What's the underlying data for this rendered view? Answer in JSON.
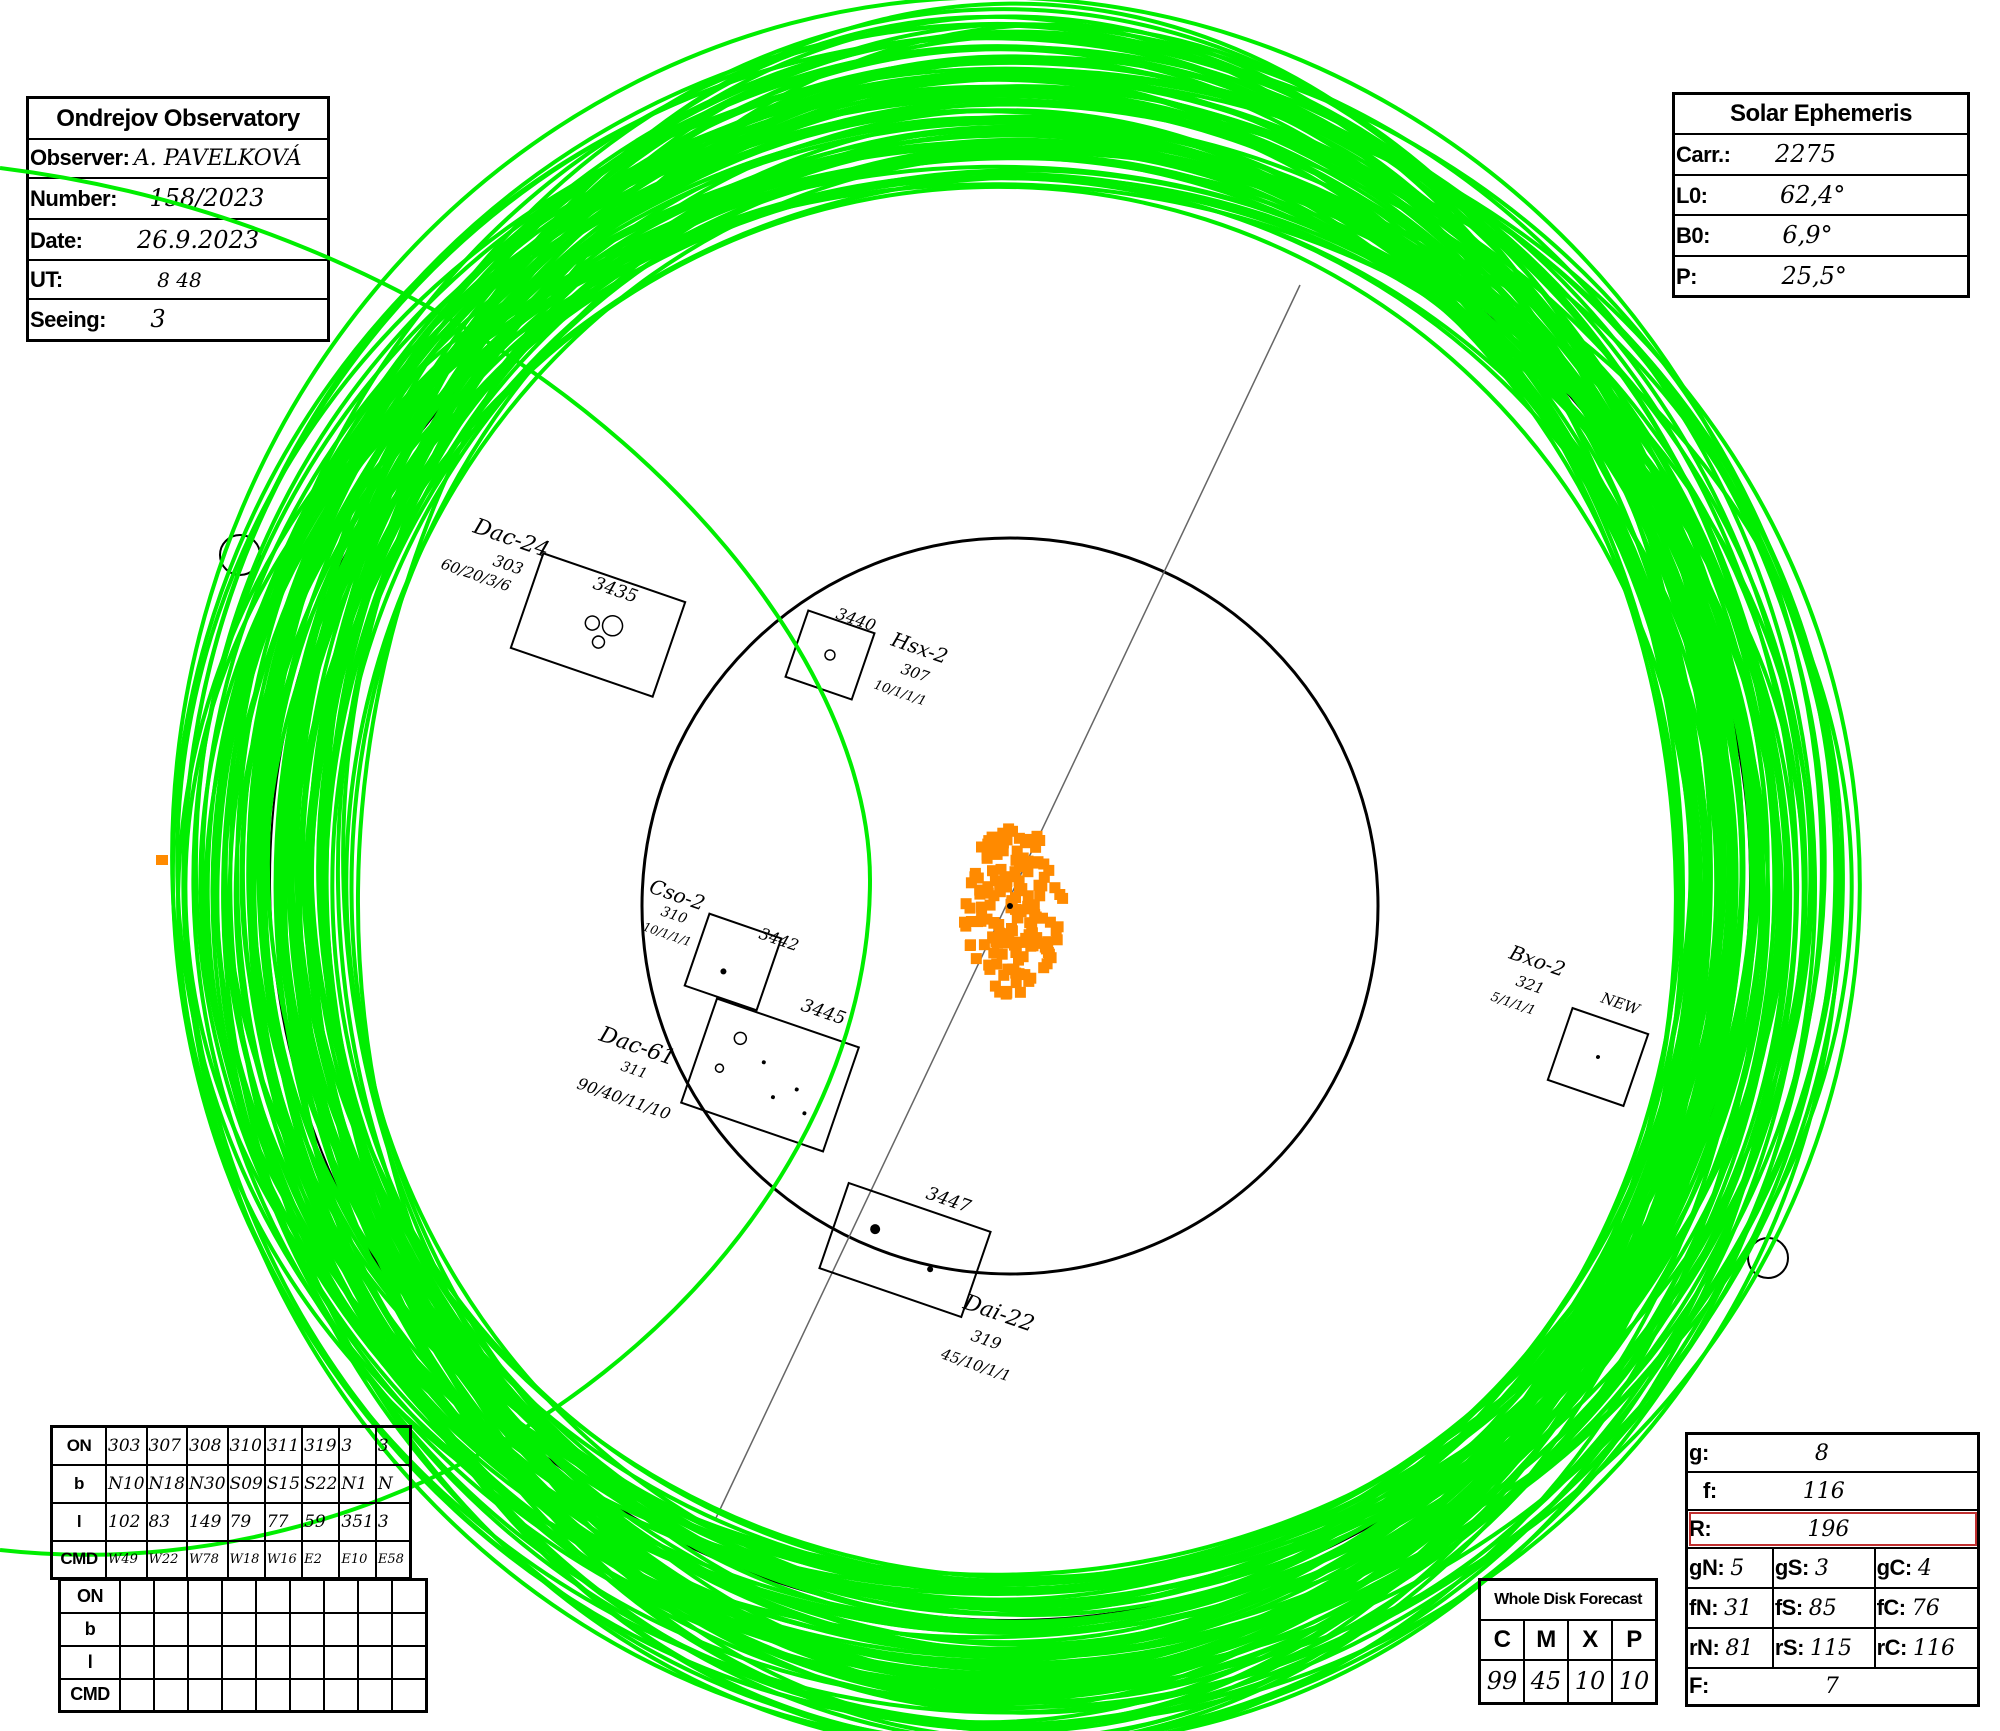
{
  "observatory": {
    "title": "Ondrejov Observatory",
    "observer_label": "Observer:",
    "observer": "A. PAVELKOVÁ",
    "number_label": "Number:",
    "number": "158/2023",
    "date_label": "Date:",
    "date": "26.9.2023",
    "ut_label": "UT:",
    "ut": "8 48",
    "seeing_label": "Seeing:",
    "seeing": "3"
  },
  "ephemeris": {
    "title": "Solar Ephemeris",
    "carr_label": "Carr.:",
    "carr": "2275",
    "l0_label": "L0:",
    "l0": "62,4°",
    "b0_label": "B0:",
    "b0": "6,9°",
    "p_label": "P:",
    "p": "25,5°"
  },
  "groups": [
    {
      "number": "3435",
      "class": "Dac-24",
      "cmd": "303",
      "detail": "60/20/3/6"
    },
    {
      "number": "3440",
      "class": "Hsx-2",
      "cmd": "307",
      "detail": "10/1/1/1"
    },
    {
      "number": "3442",
      "class": "Cso-2",
      "cmd": "310",
      "detail": "10/1/1/1"
    },
    {
      "number": "3445",
      "class": "Dac-61",
      "cmd": "311",
      "detail": "90/40/11/10"
    },
    {
      "number": "3447",
      "class": "Dai-22",
      "cmd": "319",
      "detail": "45/10/1/1"
    },
    {
      "number": "NEW",
      "class": "Bxo-2",
      "cmd": "321",
      "detail": "5/1/1/1"
    }
  ],
  "on_table": {
    "row_labels": [
      "ON",
      "b",
      "l",
      "CMD"
    ],
    "on": [
      "303",
      "307",
      "308",
      "310",
      "311",
      "319",
      "3",
      "3"
    ],
    "b": [
      "N10",
      "N18",
      "N30",
      "S09",
      "S15",
      "S22",
      "N1",
      "N"
    ],
    "l": [
      "102",
      "83",
      "149",
      "79",
      "77",
      "59",
      "351",
      "3"
    ],
    "cmd": [
      "W49",
      "W22",
      "W78",
      "W18",
      "W16",
      "E2",
      "E10",
      "E58"
    ]
  },
  "on_table_empty": {
    "row_labels": [
      "ON",
      "b",
      "l",
      "CMD"
    ]
  },
  "forecast": {
    "title": "Whole Disk Forecast",
    "headers": [
      "C",
      "M",
      "X",
      "P"
    ],
    "values": [
      "99",
      "45",
      "10",
      "10"
    ]
  },
  "summary": {
    "g_label": "g:",
    "g": "8",
    "f_label": "f:",
    "f": "116",
    "r_label": "R:",
    "r": "196",
    "gn_label": "gN:",
    "gn": "5",
    "gs_label": "gS:",
    "gs": "3",
    "gc_label": "gC:",
    "gc": "4",
    "fn_label": "fN:",
    "fn": "31",
    "fs_label": "fS:",
    "fs": "85",
    "fc_label": "fC:",
    "fc": "76",
    "rn_label": "rN:",
    "rn": "81",
    "rs_label": "rS:",
    "rs": "115",
    "rc_label": "rC:",
    "rc": "116",
    "ff_label": "F:",
    "ff": "7"
  },
  "colors": {
    "annotation_green": "#00ee00",
    "annotation_orange": "#ff8a00",
    "ink": "#000000"
  }
}
